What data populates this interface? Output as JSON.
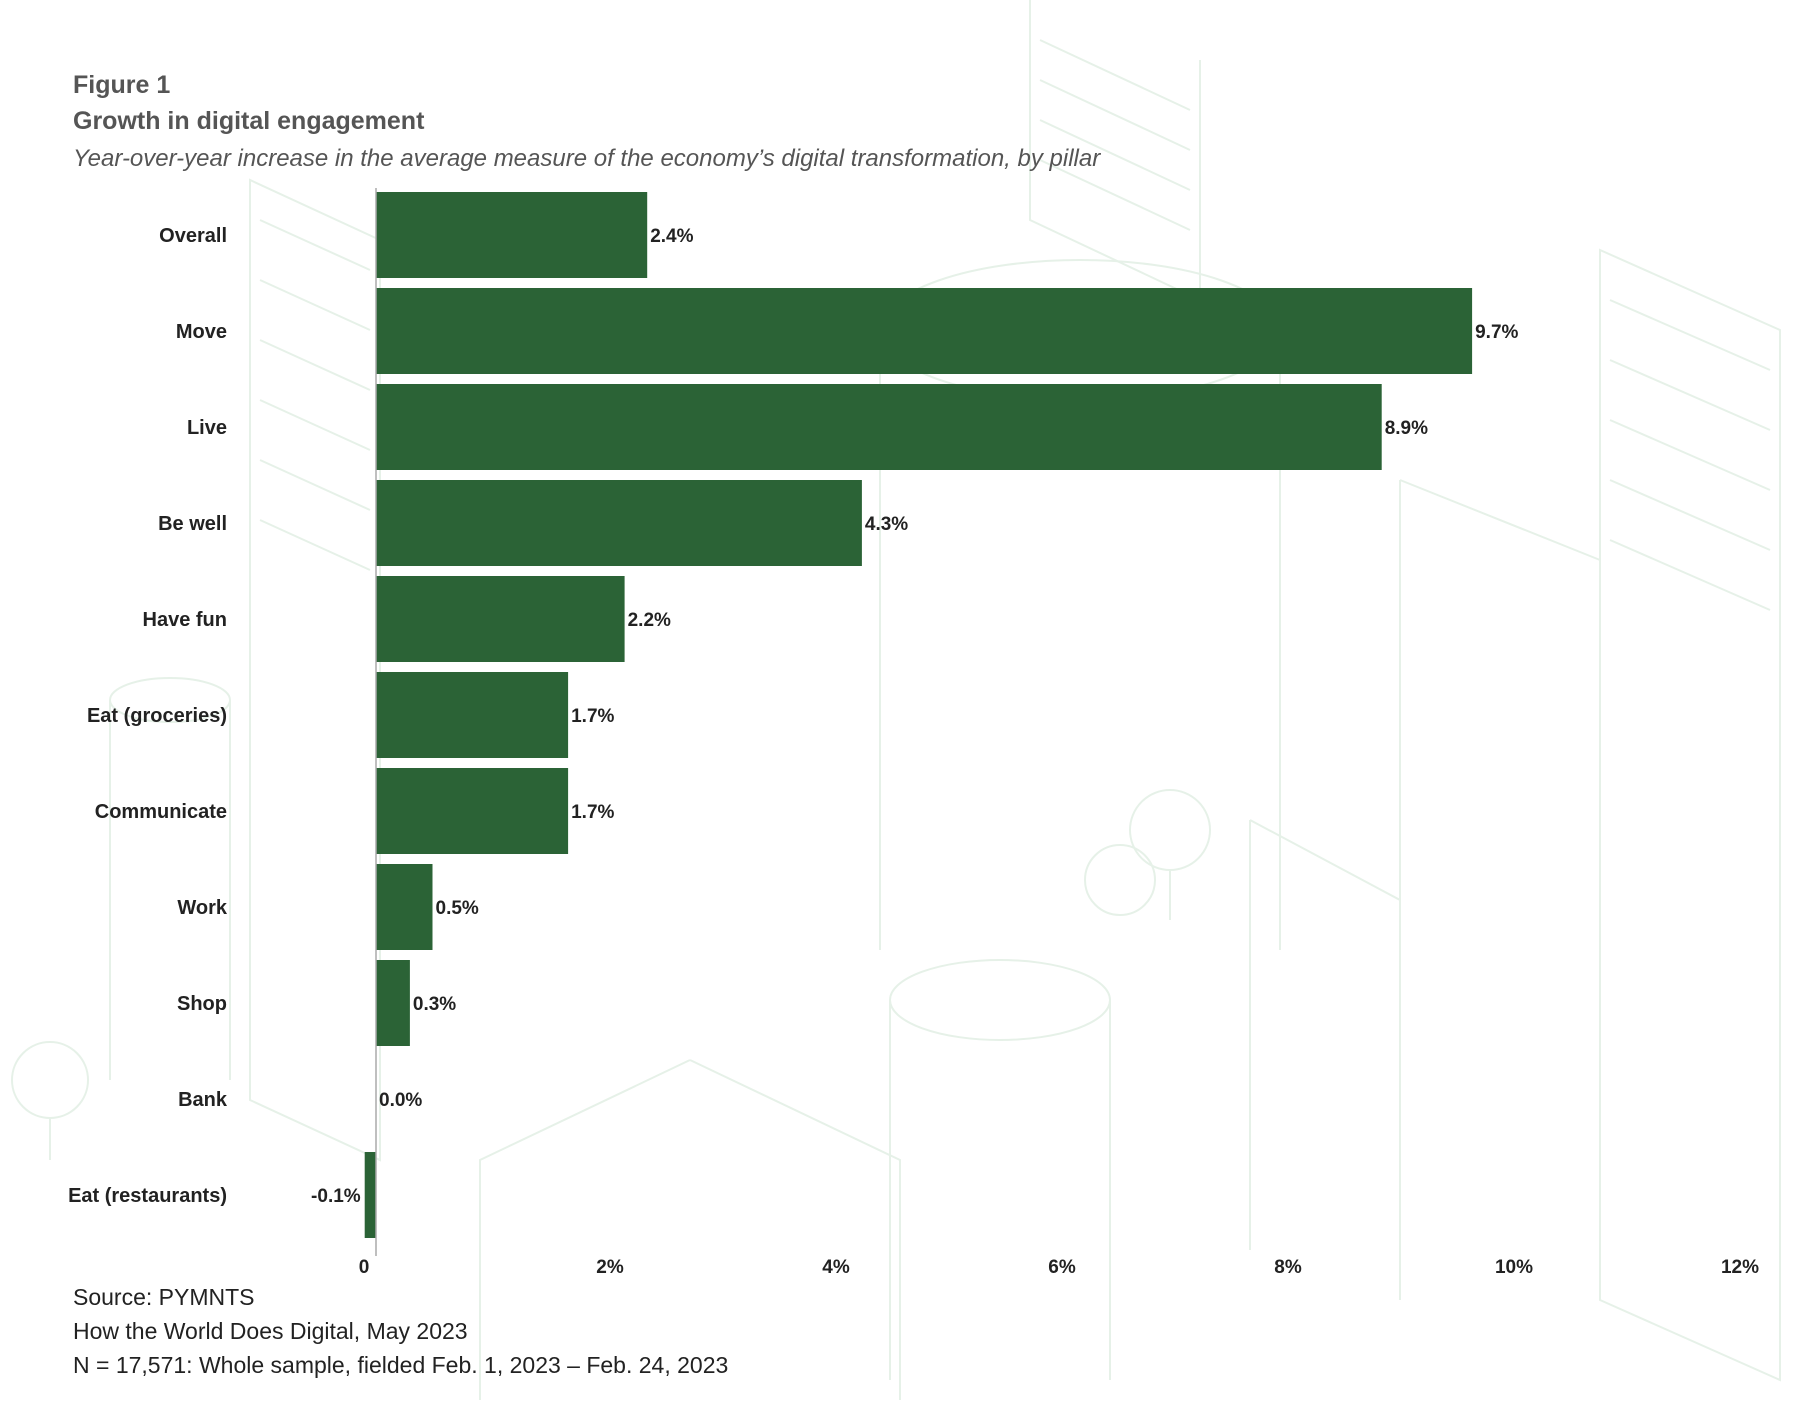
{
  "header": {
    "figure_label": "Figure 1",
    "title": "Growth in digital engagement",
    "subtitle": "Year-over-year increase in the average measure of the economy’s digital transformation, by pillar"
  },
  "chart_data": {
    "type": "bar",
    "orientation": "horizontal",
    "categories": [
      "Overall",
      "Move",
      "Live",
      "Be well",
      "Have fun",
      "Eat (groceries)",
      "Communicate",
      "Work",
      "Shop",
      "Bank",
      "Eat (restaurants)"
    ],
    "values": [
      2.4,
      9.7,
      8.9,
      4.3,
      2.2,
      1.7,
      1.7,
      0.5,
      0.3,
      0.0,
      -0.1
    ],
    "data_labels": [
      "2.4%",
      "9.7%",
      "8.9%",
      "4.3%",
      "2.2%",
      "1.7%",
      "1.7%",
      "0.5%",
      "0.3%",
      "0.0%",
      "-0.1%"
    ],
    "x_ticks": [
      0,
      2,
      4,
      6,
      8,
      10,
      12
    ],
    "x_tick_labels": [
      "0",
      "2%",
      "4%",
      "6%",
      "8%",
      "10%",
      "12%"
    ],
    "xlim": [
      0,
      12
    ],
    "bar_color": "#2b6336",
    "grid": false
  },
  "footer": {
    "source": "Source: PYMNTS",
    "report": "How the World Does Digital, May 2023",
    "sample": "N = 17,571: Whole sample, fielded Feb. 1, 2023 – Feb. 24, 2023"
  }
}
